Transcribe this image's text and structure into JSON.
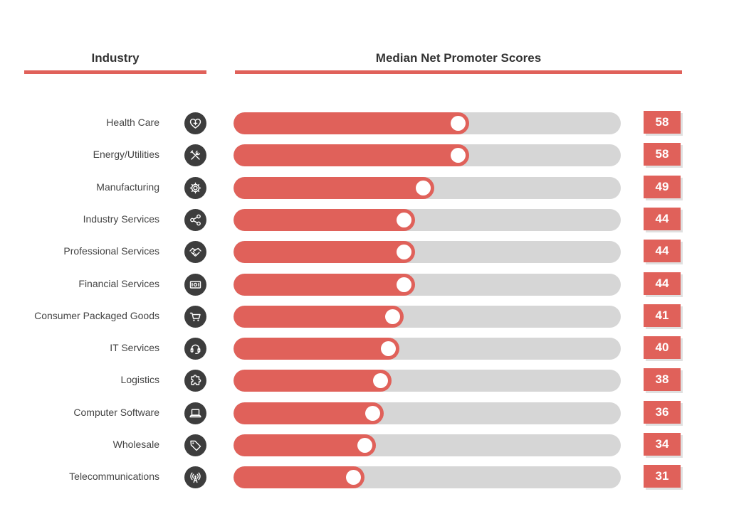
{
  "header": {
    "industry_title": "Industry",
    "chart_title": "Median Net Promoter Scores"
  },
  "colors": {
    "accent": "#e0615a",
    "track": "#d6d6d6",
    "icon_bg": "#3d3d3d"
  },
  "chart_data": {
    "type": "bar",
    "orientation": "horizontal",
    "title": "Median Net Promoter Scores",
    "xlabel": "",
    "ylabel": "Industry",
    "xlim": [
      0,
      100
    ],
    "grid": false,
    "categories": [
      "Health Care",
      "Energy/Utilities",
      "Manufacturing",
      "Industry Services",
      "Professional Services",
      "Financial Services",
      "Consumer Packaged Goods",
      "IT Services",
      "Logistics",
      "Computer Software",
      "Wholesale",
      "Telecommunications"
    ],
    "values": [
      58,
      58,
      49,
      44,
      44,
      44,
      41,
      40,
      38,
      36,
      34,
      31
    ],
    "icons": [
      "heart-plus-icon",
      "tools-icon",
      "gear-icon",
      "share-icon",
      "handshake-icon",
      "money-icon",
      "cart-icon",
      "headset-icon",
      "puzzle-icon",
      "laptop-icon",
      "tag-icon",
      "antenna-icon"
    ]
  }
}
